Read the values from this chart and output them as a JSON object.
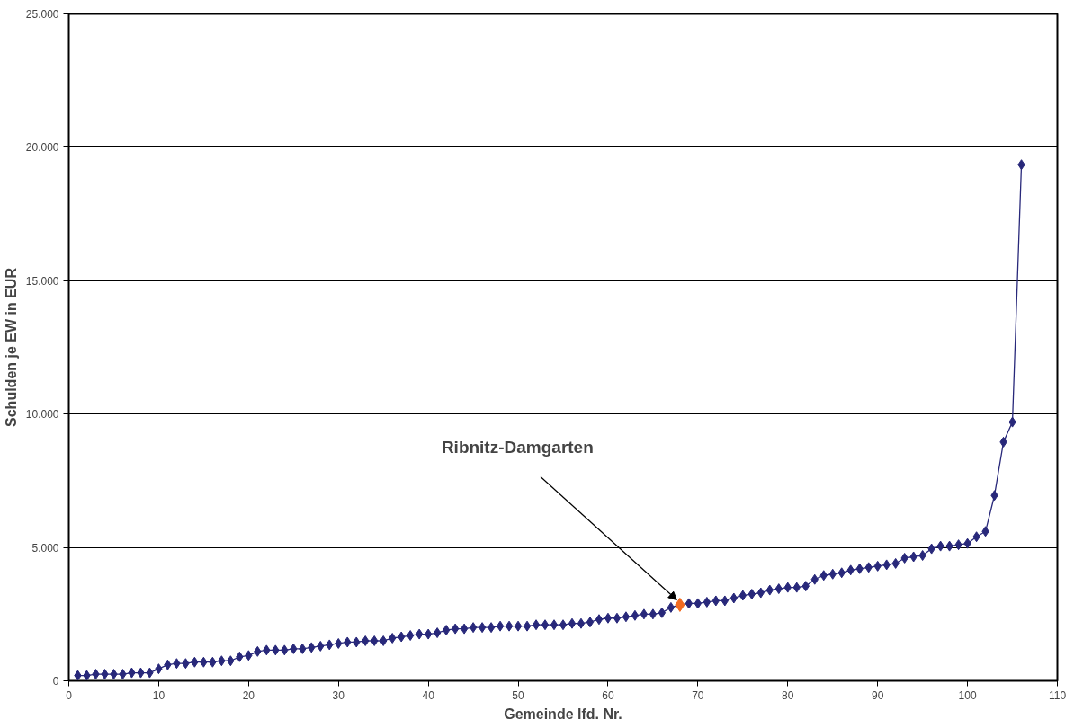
{
  "chart_data": {
    "type": "line",
    "xlabel": "Gemeinde lfd. Nr.",
    "ylabel": "Schulden je EW in EUR",
    "x": [
      1,
      2,
      3,
      4,
      5,
      6,
      7,
      8,
      9,
      10,
      11,
      12,
      13,
      14,
      15,
      16,
      17,
      18,
      19,
      20,
      21,
      22,
      23,
      24,
      25,
      26,
      27,
      28,
      29,
      30,
      31,
      32,
      33,
      34,
      35,
      36,
      37,
      38,
      39,
      40,
      41,
      42,
      43,
      44,
      45,
      46,
      47,
      48,
      49,
      50,
      51,
      52,
      53,
      54,
      55,
      56,
      57,
      58,
      59,
      60,
      61,
      62,
      63,
      64,
      65,
      66,
      67,
      68,
      69,
      70,
      71,
      72,
      73,
      74,
      75,
      76,
      77,
      78,
      79,
      80,
      81,
      82,
      83,
      84,
      85,
      86,
      87,
      88,
      89,
      90,
      91,
      92,
      93,
      94,
      95,
      96,
      97,
      98,
      99,
      100,
      101,
      102,
      103,
      104,
      105,
      106
    ],
    "series": [
      {
        "color": "#28287a",
        "marker": "diamond",
        "values": [
          200,
          200,
          250,
          250,
          250,
          250,
          300,
          300,
          300,
          450,
          600,
          650,
          650,
          700,
          700,
          700,
          750,
          750,
          900,
          950,
          1100,
          1150,
          1150,
          1150,
          1200,
          1200,
          1250,
          1300,
          1350,
          1400,
          1450,
          1450,
          1500,
          1500,
          1500,
          1600,
          1650,
          1700,
          1750,
          1750,
          1800,
          1900,
          1950,
          1950,
          2000,
          2000,
          2000,
          2050,
          2050,
          2050,
          2050,
          2100,
          2100,
          2100,
          2100,
          2150,
          2150,
          2200,
          2300,
          2350,
          2350,
          2400,
          2450,
          2500,
          2500,
          2550,
          2750,
          2850,
          2900,
          2900,
          2950,
          3000,
          3000,
          3100,
          3200,
          3250,
          3300,
          3400,
          3450,
          3500,
          3500,
          3550,
          3800,
          3950,
          4000,
          4050,
          4150,
          4200,
          4250,
          4300,
          4350,
          4400,
          4600,
          4650,
          4700,
          4950,
          5050,
          5050,
          5100,
          5150,
          5400,
          5600,
          6950,
          8950,
          9700,
          19350
        ]
      },
      {
        "type": "scatter",
        "color": "#f26b21",
        "marker": "diamond",
        "x": [
          68
        ],
        "values": [
          2850
        ]
      }
    ],
    "annotations": [
      {
        "text": "Ribnitz-Damgarten",
        "x": 68,
        "y": 2850
      }
    ],
    "xlim": [
      0,
      110
    ],
    "xticks": [
      0,
      10,
      20,
      30,
      40,
      50,
      60,
      70,
      80,
      90,
      100,
      110
    ],
    "ylim": [
      0,
      25000
    ],
    "yticks": [
      {
        "value": 0,
        "label": "0"
      },
      {
        "value": 5000,
        "label": "5.000"
      },
      {
        "value": 10000,
        "label": "10.000"
      },
      {
        "value": 15000,
        "label": "15.000"
      },
      {
        "value": 20000,
        "label": "20.000"
      },
      {
        "value": 25000,
        "label": "25.000"
      }
    ],
    "grid": "y"
  }
}
